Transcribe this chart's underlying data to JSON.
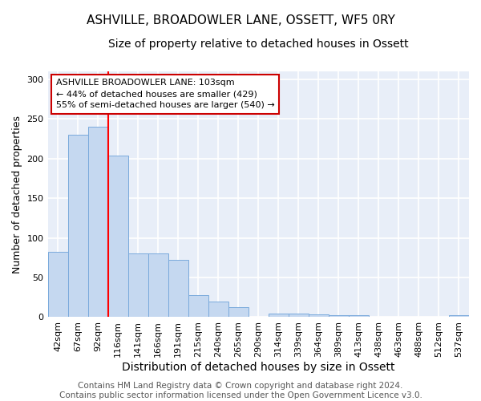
{
  "title": "ASHVILLE, BROADOWLER LANE, OSSETT, WF5 0RY",
  "subtitle": "Size of property relative to detached houses in Ossett",
  "xlabel": "Distribution of detached houses by size in Ossett",
  "ylabel": "Number of detached properties",
  "categories": [
    "42sqm",
    "67sqm",
    "92sqm",
    "116sqm",
    "141sqm",
    "166sqm",
    "191sqm",
    "215sqm",
    "240sqm",
    "265sqm",
    "290sqm",
    "314sqm",
    "339sqm",
    "364sqm",
    "389sqm",
    "413sqm",
    "438sqm",
    "463sqm",
    "488sqm",
    "512sqm",
    "537sqm"
  ],
  "values": [
    82,
    230,
    240,
    204,
    80,
    80,
    72,
    28,
    20,
    13,
    0,
    5,
    5,
    3,
    2,
    2,
    0,
    0,
    0,
    0,
    2
  ],
  "bar_color": "#c5d8f0",
  "bar_edgecolor": "#7aaadc",
  "red_line_x": 2.5,
  "annotation_text": "ASHVILLE BROADOWLER LANE: 103sqm\n← 44% of detached houses are smaller (429)\n55% of semi-detached houses are larger (540) →",
  "annotation_box_facecolor": "#ffffff",
  "annotation_box_edgecolor": "#cc0000",
  "ylim": [
    0,
    310
  ],
  "yticks": [
    0,
    50,
    100,
    150,
    200,
    250,
    300
  ],
  "footer": "Contains HM Land Registry data © Crown copyright and database right 2024.\nContains public sector information licensed under the Open Government Licence v3.0.",
  "background_color": "#ffffff",
  "plot_bg_color": "#e8eef8",
  "grid_color": "#ffffff",
  "title_fontsize": 11,
  "subtitle_fontsize": 10,
  "xlabel_fontsize": 10,
  "ylabel_fontsize": 9,
  "tick_fontsize": 8,
  "annotation_fontsize": 8,
  "footer_fontsize": 7.5
}
